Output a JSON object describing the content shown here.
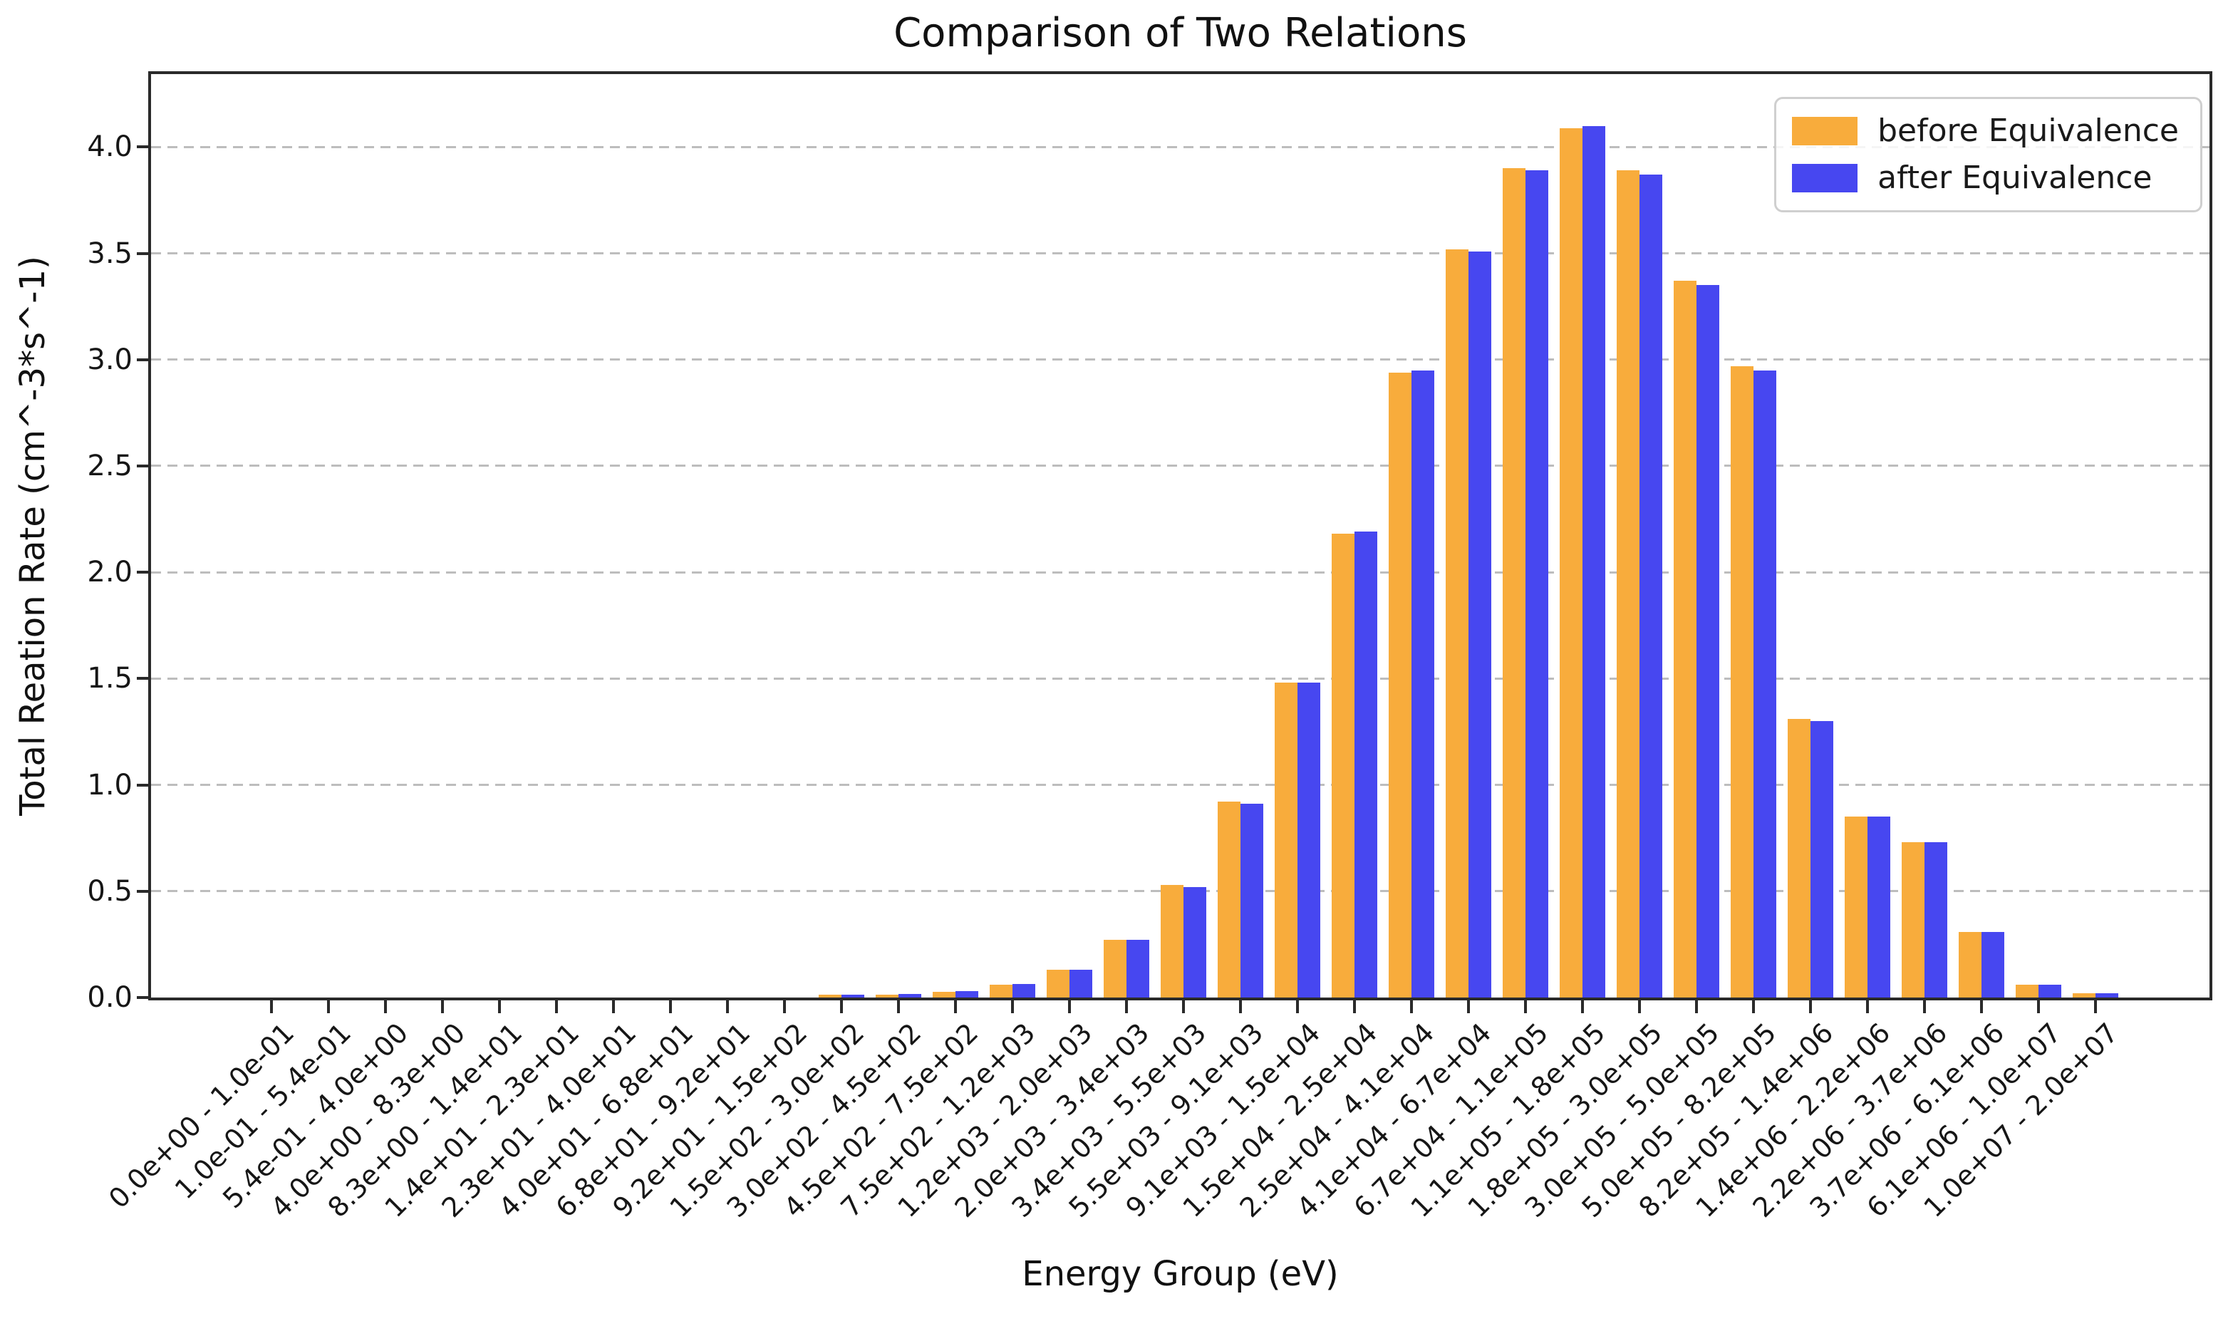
{
  "chart_data": {
    "type": "bar",
    "title": "Comparison of Two Relations",
    "xlabel": "Energy Group (eV)",
    "ylabel": "Total Reation Rate (cm^-3*s^-1)",
    "ylim": [
      0,
      4.34
    ],
    "grid": "horizontal dashed gridlines every 0.5",
    "legend_position": "upper right",
    "ytick_labels": [
      "0.0",
      "0.5",
      "1.0",
      "1.5",
      "2.0",
      "2.5",
      "3.0",
      "3.5",
      "4.0"
    ],
    "categories": [
      "0.0e+00 - 1.0e-01",
      "1.0e-01 - 5.4e-01",
      "5.4e-01 - 4.0e+00",
      "4.0e+00 - 8.3e+00",
      "8.3e+00 - 1.4e+01",
      "1.4e+01 - 2.3e+01",
      "2.3e+01 - 4.0e+01",
      "4.0e+01 - 6.8e+01",
      "6.8e+01 - 9.2e+01",
      "9.2e+01 - 1.5e+02",
      "1.5e+02 - 3.0e+02",
      "3.0e+02 - 4.5e+02",
      "4.5e+02 - 7.5e+02",
      "7.5e+02 - 1.2e+03",
      "1.2e+03 - 2.0e+03",
      "2.0e+03 - 3.4e+03",
      "3.4e+03 - 5.5e+03",
      "5.5e+03 - 9.1e+03",
      "9.1e+03 - 1.5e+04",
      "1.5e+04 - 2.5e+04",
      "2.5e+04 - 4.1e+04",
      "4.1e+04 - 6.7e+04",
      "6.7e+04 - 1.1e+05",
      "1.1e+05 - 1.8e+05",
      "1.8e+05 - 3.0e+05",
      "3.0e+05 - 5.0e+05",
      "5.0e+05 - 8.2e+05",
      "8.2e+05 - 1.4e+06",
      "1.4e+06 - 2.2e+06",
      "2.2e+06 - 3.7e+06",
      "3.7e+06 - 6.1e+06",
      "6.1e+06 - 1.0e+07",
      "1.0e+07 - 2.0e+07"
    ],
    "series": [
      {
        "name": "before Equivalence",
        "color": "#F8AC3C",
        "values": [
          0,
          0,
          0,
          0,
          0,
          0,
          0,
          0,
          0,
          0,
          0.012,
          0.014,
          0.028,
          0.06,
          0.13,
          0.27,
          0.53,
          0.92,
          1.48,
          2.18,
          2.94,
          3.52,
          3.9,
          4.09,
          3.89,
          3.37,
          2.97,
          1.31,
          0.85,
          0.73,
          0.31,
          0.06,
          0.02
        ]
      },
      {
        "name": "after Equivalence",
        "color": "#4747F0",
        "values": [
          0,
          0,
          0,
          0,
          0,
          0,
          0,
          0,
          0,
          0,
          0.015,
          0.016,
          0.03,
          0.065,
          0.13,
          0.27,
          0.52,
          0.91,
          1.48,
          2.19,
          2.95,
          3.51,
          3.89,
          4.1,
          3.87,
          3.35,
          2.95,
          1.3,
          0.85,
          0.73,
          0.31,
          0.06,
          0.02
        ]
      }
    ],
    "colors": {
      "spine": "#2a2a2a",
      "grid": "#bdbdbd",
      "text": "#161616",
      "legend_border": "#cfcfcf"
    }
  }
}
